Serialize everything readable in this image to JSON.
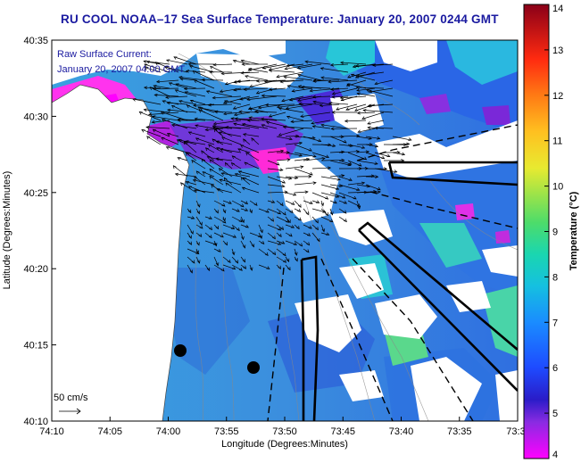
{
  "title": "RU COOL  NOAA–17  Sea Surface Temperature:  January 20, 2007 0244 GMT",
  "legend": {
    "line1": "Raw Surface Current:",
    "line2": "January 20, 2007 04:00 GMT"
  },
  "scale": {
    "label": "50 cm/s"
  },
  "axes": {
    "xlabel": "Longitude (Degrees:Minutes)",
    "ylabel": "Latitude (Degrees:Minutes)",
    "x_ticks": [
      "74:10",
      "74:05",
      "74:00",
      "73:55",
      "73:50",
      "73:45",
      "73:40",
      "73:35",
      "73:3"
    ],
    "y_ticks": [
      "40:35",
      "40:30",
      "40:25",
      "40:20",
      "40:15",
      "40:10"
    ]
  },
  "colorbar": {
    "title": "Temperature (°C)",
    "min": 4,
    "max": 14,
    "ticks": [
      "14",
      "13",
      "12",
      "11",
      "10",
      "9",
      "8",
      "7",
      "6",
      "5",
      "4"
    ],
    "colors": [
      "#ff00ff",
      "#3b2bd8",
      "#1a5cff",
      "#17a8e8",
      "#19d6b0",
      "#6de36a",
      "#e4e83a",
      "#ffbb22",
      "#ff5a14",
      "#d0101a",
      "#8a0018"
    ]
  },
  "colors": {
    "water_base": "#3a95dc",
    "land": "#ffffff",
    "title": "#1a1aa0"
  }
}
